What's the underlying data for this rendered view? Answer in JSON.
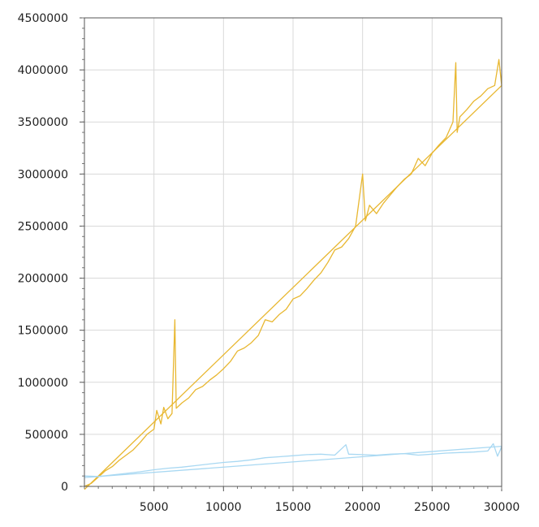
{
  "chart_data": {
    "type": "line",
    "title": "",
    "xlabel": "",
    "ylabel": "",
    "xlim": [
      0,
      30000
    ],
    "ylim": [
      0,
      4500000
    ],
    "x_ticks": [
      5000,
      10000,
      15000,
      20000,
      25000,
      30000
    ],
    "x_tick_labels": [
      "5000",
      "10000",
      "15000",
      "20000",
      "25000",
      "30000"
    ],
    "y_ticks": [
      0,
      500000,
      1000000,
      1500000,
      2000000,
      2500000,
      3000000,
      3500000,
      4000000,
      4500000
    ],
    "y_tick_labels": [
      "0",
      "500000",
      "1000000",
      "1500000",
      "2000000",
      "2500000",
      "3000000",
      "3500000",
      "4000000",
      "4500000"
    ],
    "grid": true,
    "series": [
      {
        "color": "#e8b730",
        "kind": "noisy",
        "points": [
          [
            0,
            0
          ],
          [
            500,
            30000
          ],
          [
            1000,
            90000
          ],
          [
            1500,
            150000
          ],
          [
            2000,
            190000
          ],
          [
            2500,
            250000
          ],
          [
            3000,
            300000
          ],
          [
            3500,
            350000
          ],
          [
            4000,
            420000
          ],
          [
            4500,
            500000
          ],
          [
            5000,
            550000
          ],
          [
            5200,
            730000
          ],
          [
            5500,
            600000
          ],
          [
            5700,
            760000
          ],
          [
            6000,
            650000
          ],
          [
            6300,
            700000
          ],
          [
            6500,
            1600000
          ],
          [
            6600,
            750000
          ],
          [
            7000,
            800000
          ],
          [
            7500,
            850000
          ],
          [
            8000,
            930000
          ],
          [
            8500,
            960000
          ],
          [
            9000,
            1020000
          ],
          [
            9500,
            1070000
          ],
          [
            10000,
            1130000
          ],
          [
            10500,
            1200000
          ],
          [
            11000,
            1300000
          ],
          [
            11500,
            1330000
          ],
          [
            12000,
            1380000
          ],
          [
            12500,
            1450000
          ],
          [
            13000,
            1600000
          ],
          [
            13500,
            1580000
          ],
          [
            14000,
            1650000
          ],
          [
            14500,
            1700000
          ],
          [
            15000,
            1800000
          ],
          [
            15500,
            1830000
          ],
          [
            16000,
            1900000
          ],
          [
            16500,
            1980000
          ],
          [
            17000,
            2050000
          ],
          [
            17500,
            2150000
          ],
          [
            18000,
            2270000
          ],
          [
            18500,
            2300000
          ],
          [
            19000,
            2380000
          ],
          [
            19500,
            2500000
          ],
          [
            20000,
            3000000
          ],
          [
            20200,
            2550000
          ],
          [
            20500,
            2700000
          ],
          [
            21000,
            2620000
          ],
          [
            21500,
            2720000
          ],
          [
            22000,
            2800000
          ],
          [
            22500,
            2880000
          ],
          [
            23000,
            2950000
          ],
          [
            23500,
            3000000
          ],
          [
            24000,
            3150000
          ],
          [
            24500,
            3080000
          ],
          [
            25000,
            3200000
          ],
          [
            25500,
            3280000
          ],
          [
            26000,
            3350000
          ],
          [
            26500,
            3500000
          ],
          [
            26700,
            4070000
          ],
          [
            26800,
            3400000
          ],
          [
            27000,
            3550000
          ],
          [
            27500,
            3620000
          ],
          [
            28000,
            3700000
          ],
          [
            28500,
            3750000
          ],
          [
            29000,
            3820000
          ],
          [
            29500,
            3850000
          ],
          [
            29800,
            4100000
          ],
          [
            30000,
            3850000
          ]
        ]
      },
      {
        "color": "#e8b730",
        "kind": "fit",
        "points": [
          [
            0,
            -30000
          ],
          [
            30000,
            3850000
          ]
        ]
      },
      {
        "color": "#a8d8f2",
        "kind": "noisy",
        "points": [
          [
            0,
            100000
          ],
          [
            1000,
            95000
          ],
          [
            2000,
            110000
          ],
          [
            3000,
            125000
          ],
          [
            4000,
            140000
          ],
          [
            5000,
            160000
          ],
          [
            6000,
            175000
          ],
          [
            7000,
            185000
          ],
          [
            8000,
            200000
          ],
          [
            9000,
            215000
          ],
          [
            10000,
            230000
          ],
          [
            11000,
            240000
          ],
          [
            12000,
            255000
          ],
          [
            13000,
            275000
          ],
          [
            14000,
            285000
          ],
          [
            15000,
            295000
          ],
          [
            16000,
            305000
          ],
          [
            17000,
            310000
          ],
          [
            18000,
            300000
          ],
          [
            18800,
            400000
          ],
          [
            19000,
            310000
          ],
          [
            20000,
            305000
          ],
          [
            21000,
            300000
          ],
          [
            22000,
            310000
          ],
          [
            23000,
            315000
          ],
          [
            24000,
            300000
          ],
          [
            25000,
            310000
          ],
          [
            26000,
            320000
          ],
          [
            27000,
            325000
          ],
          [
            28000,
            330000
          ],
          [
            29000,
            340000
          ],
          [
            29400,
            410000
          ],
          [
            29700,
            290000
          ],
          [
            30000,
            380000
          ]
        ]
      },
      {
        "color": "#a8d8f2",
        "kind": "fit",
        "points": [
          [
            0,
            85000
          ],
          [
            30000,
            385000
          ]
        ]
      }
    ]
  }
}
